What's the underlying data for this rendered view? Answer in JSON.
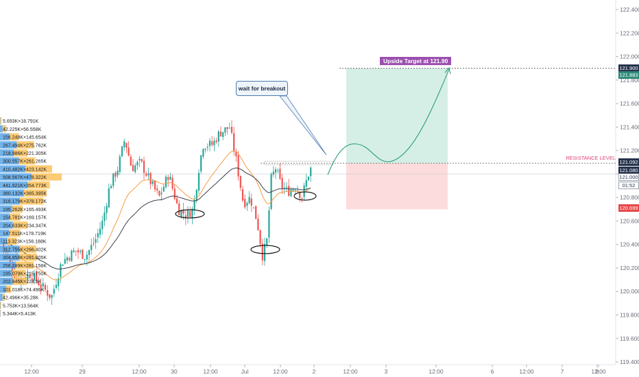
{
  "chart_data": {
    "type": "candlestick",
    "y_axis": {
      "ticks": [
        "122.400",
        "122.200",
        "122.000",
        "121.800",
        "121.600",
        "121.400",
        "121.200",
        "121.000",
        "120.800",
        "120.600",
        "120.400",
        "120.200",
        "120.000",
        "119.800",
        "119.600",
        "119.400"
      ]
    },
    "x_axis": {
      "ticks": [
        "12:00",
        "29",
        "12:00",
        "30",
        "12:00",
        "Jul",
        "12:00",
        "2",
        "12:00",
        "3",
        "12:00",
        "6",
        "12:00",
        "7",
        "12:00",
        "8",
        "12:00"
      ]
    },
    "annotations": {
      "callout": "wait for breakout",
      "target_label": "Upside Target at 121.90",
      "resistance_label": "RESISTANCE LEVEL"
    },
    "price_tags": [
      {
        "text": "121.900",
        "color": "#26334d"
      },
      {
        "text": "121.883",
        "color": "#2e8b7a"
      },
      {
        "text": "121.092",
        "color": "#26334d"
      },
      {
        "text": "121.080",
        "color": "#26334d"
      },
      {
        "text": "121.000",
        "color": "#ffffff"
      },
      {
        "text": "01:52",
        "color": "#ffffff"
      },
      {
        "text": "120.699",
        "color": "#e8484a"
      }
    ],
    "volume_profile": [
      {
        "label": "5.693K×18.791K",
        "buy": 5.7,
        "sell": 18.8
      },
      {
        "label": "42.225K×56.558K",
        "buy": 42.2,
        "sell": 56.6
      },
      {
        "label": "156.248K×145.654K",
        "buy": 156.2,
        "sell": 145.7
      },
      {
        "label": "267.494K×275.762K",
        "buy": 267.5,
        "sell": 275.8
      },
      {
        "label": "218.986K×221.305K",
        "buy": 219.0,
        "sell": 221.3
      },
      {
        "label": "300.557K×261.265K",
        "buy": 300.6,
        "sell": 261.3
      },
      {
        "label": "410.482K×423.142K",
        "buy": 410.5,
        "sell": 423.1
      },
      {
        "label": "508.567K×478.322K",
        "buy": 508.6,
        "sell": 478.3
      },
      {
        "label": "441.921K×354.773K",
        "buy": 441.9,
        "sell": 354.8
      },
      {
        "label": "380.132K×365.395K",
        "buy": 380.1,
        "sell": 365.4
      },
      {
        "label": "316.179K×378.172K",
        "buy": 316.2,
        "sell": 378.2
      },
      {
        "label": "195.262K×165.493K",
        "buy": 195.3,
        "sell": 165.5
      },
      {
        "label": "154.781K×169.157K",
        "buy": 154.8,
        "sell": 169.2
      },
      {
        "label": "204.633K×234.347K",
        "buy": 204.6,
        "sell": 234.3
      },
      {
        "label": "147.511K×178.719K",
        "buy": 147.5,
        "sell": 178.7
      },
      {
        "label": "113.323K×156.188K",
        "buy": 113.3,
        "sell": 156.2
      },
      {
        "label": "312.755K×266.402K",
        "buy": 312.8,
        "sell": 266.4
      },
      {
        "label": "304.958K×281.805K",
        "buy": 305.0,
        "sell": 281.8
      },
      {
        "label": "256.289K×281.156K",
        "buy": 256.3,
        "sell": 281.2
      },
      {
        "label": "195.079K×215.750K",
        "buy": 195.1,
        "sell": 215.8
      },
      {
        "label": "202.845K×224.9K",
        "buy": 202.8,
        "sell": 224.9
      },
      {
        "label": "101.018K×74.496K",
        "buy": 101.0,
        "sell": 74.5
      },
      {
        "label": "42.496K×35.28K",
        "buy": 42.5,
        "sell": 35.3
      },
      {
        "label": "5.753K×13.564K",
        "buy": 5.8,
        "sell": 13.6
      },
      {
        "label": "5.344K×5.413K",
        "buy": 5.3,
        "sell": 5.4
      }
    ],
    "colors": {
      "up": "#26a69a",
      "down": "#ef5350",
      "ema_fast": "#f59b42",
      "ema_slow": "#3c3f4a",
      "reward_zone": "#d6efe6",
      "risk_zone": "#fcdcdc",
      "buy_volume": "#5ba6e6",
      "sell_volume": "#fcc25c",
      "projection": "#2a9d7c"
    }
  }
}
